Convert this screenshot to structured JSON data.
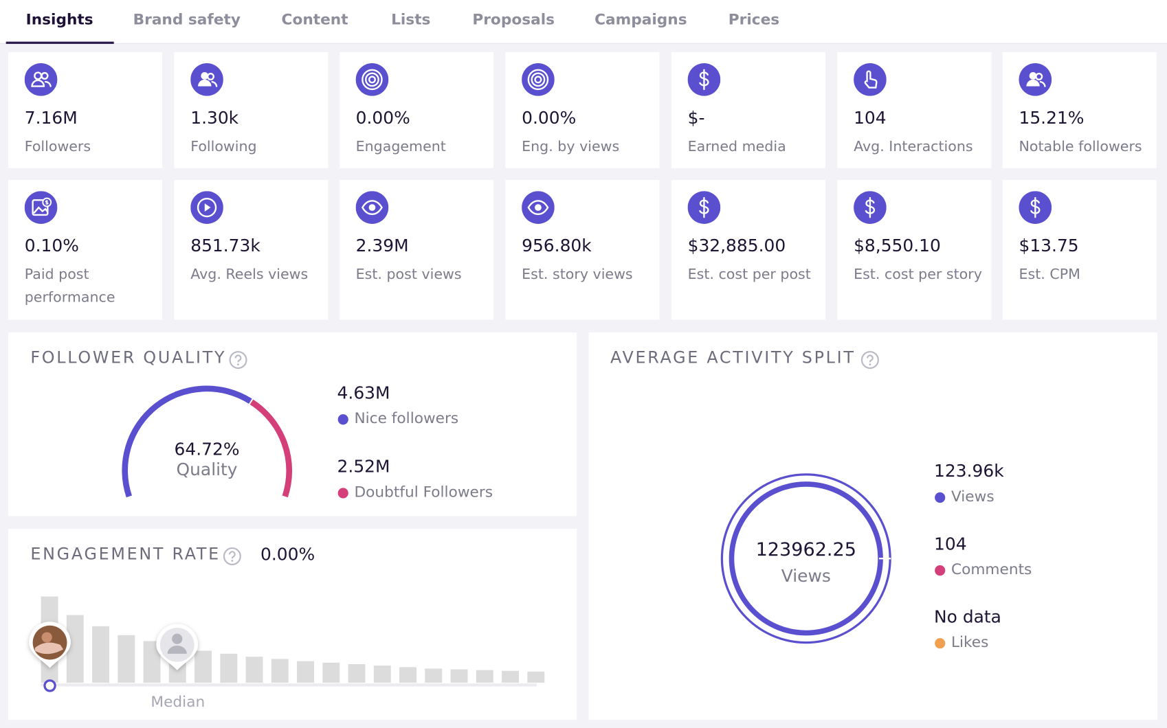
{
  "tabs": [
    "Insights",
    "Brand safety",
    "Content",
    "Lists",
    "Proposals",
    "Campaigns",
    "Prices"
  ],
  "stats": [
    {
      "value": "7.16M",
      "label": "Followers"
    },
    {
      "value": "1.30k",
      "label": "Following"
    },
    {
      "value": "0.00%",
      "label": "Engagement"
    },
    {
      "value": "0.00%",
      "label": "Eng. by views"
    },
    {
      "value": "$-",
      "label": "Earned media"
    },
    {
      "value": "104",
      "label": "Avg. Interactions"
    },
    {
      "value": "15.21%",
      "label": "Notable followers"
    },
    {
      "value": "0.10%",
      "label": "Paid post performance"
    },
    {
      "value": "851.73k",
      "label": "Avg. Reels views"
    },
    {
      "value": "2.39M",
      "label": "Est. post views"
    },
    {
      "value": "956.80k",
      "label": "Est. story views"
    },
    {
      "value": "$32,885.00",
      "label": "Est. cost per post"
    },
    {
      "value": "$8,550.10",
      "label": "Est. cost per story"
    },
    {
      "value": "$13.75",
      "label": "Est. CPM"
    }
  ],
  "follower_quality": {
    "title": "FOLLOWER QUALITY",
    "quality": "64.72%",
    "quality_label": "Quality",
    "legend": [
      {
        "value": "4.63M",
        "label": "Nice followers"
      },
      {
        "value": "2.52M",
        "label": "Doubtful Followers"
      }
    ]
  },
  "engagement_rate": {
    "title": "ENGAGEMENT RATE",
    "value": "0.00%",
    "median_label": "Median"
  },
  "activity_split": {
    "title": "AVERAGE ACTIVITY SPLIT",
    "center_value": "123962.25",
    "center_label": "Views",
    "legend": [
      {
        "value": "123.96k",
        "label": "Views"
      },
      {
        "value": "104",
        "label": "Comments"
      },
      {
        "value": "No data",
        "label": "Likes"
      }
    ]
  }
}
